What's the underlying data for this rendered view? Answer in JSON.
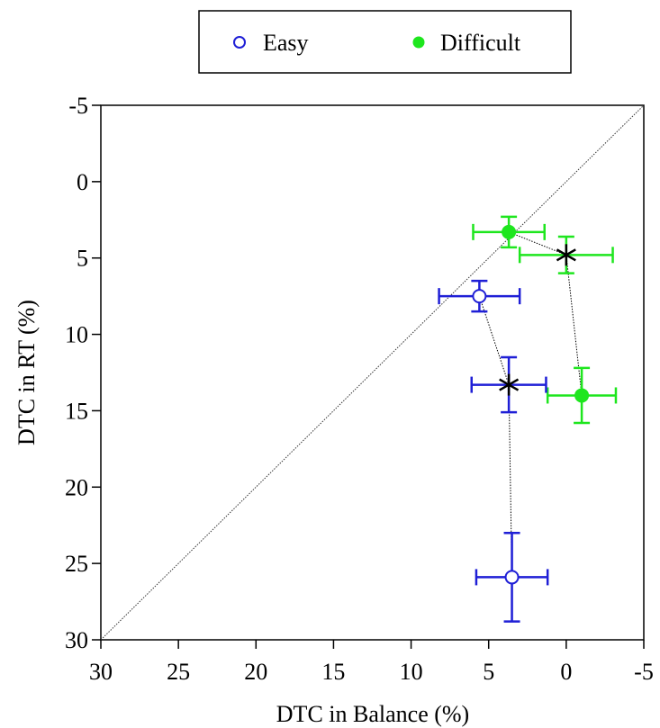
{
  "chart_data": {
    "type": "scatter",
    "xlabel": "DTC in Balance (%)",
    "ylabel": "DTC in RT (%)",
    "xlim": [
      30,
      -5
    ],
    "ylim": [
      30,
      -5
    ],
    "x_reversed": true,
    "y_reversed": true,
    "xticks": [
      30,
      25,
      20,
      15,
      10,
      5,
      0,
      -5
    ],
    "yticks": [
      -5,
      0,
      5,
      10,
      15,
      20,
      25,
      30
    ],
    "identity_line": true,
    "legend": {
      "position": "top",
      "entries": [
        "Easy",
        "Difficult"
      ]
    },
    "series": [
      {
        "name": "Easy",
        "marker": "open-circle",
        "color": "#1f1fd6",
        "points": [
          {
            "x": 5.6,
            "y": 7.5,
            "x_err": 2.6,
            "y_err": 1.0
          },
          {
            "x": 3.5,
            "y": 25.9,
            "x_err": 2.3,
            "y_err": 2.9
          }
        ]
      },
      {
        "name": "Difficult",
        "marker": "filled-circle",
        "color": "#1ee61e",
        "points": [
          {
            "x": 3.7,
            "y": 3.3,
            "x_err": 2.3,
            "y_err": 1.0
          },
          {
            "x": -1.0,
            "y": 14.0,
            "x_err": 2.2,
            "y_err": 1.8
          }
        ]
      }
    ],
    "means": [
      {
        "x": 3.7,
        "y": 13.3,
        "x_err": 2.4,
        "y_err": 1.8,
        "color": "#1f1fd6"
      },
      {
        "x": 0.0,
        "y": 4.8,
        "x_err": 3.0,
        "y_err": 1.2,
        "color": "#1ee61e"
      }
    ],
    "mean_marker_color": "#000000",
    "connector_color": "#000000"
  }
}
